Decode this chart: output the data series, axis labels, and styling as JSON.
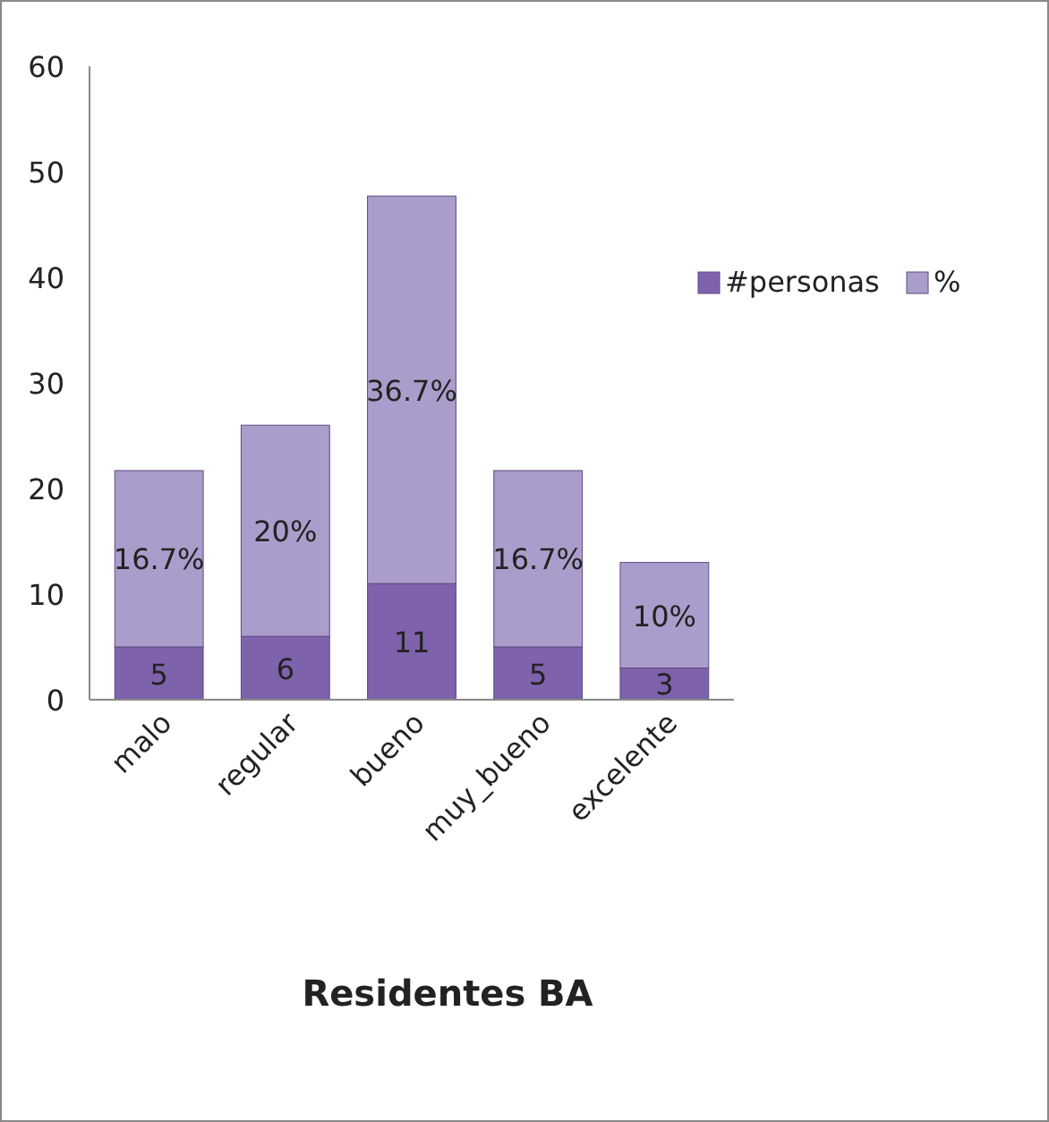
{
  "chart_data": {
    "type": "bar",
    "stacked": true,
    "xlabel": "Residentes BA",
    "categories": [
      "malo",
      "regular",
      "bueno",
      "muy_bueno",
      "excelente"
    ],
    "series": [
      {
        "name": "#personas",
        "color": "#7e62ab",
        "values": [
          5,
          6,
          11,
          5,
          3
        ],
        "value_labels": [
          "5",
          "6",
          "11",
          "5",
          "3"
        ]
      },
      {
        "name": "%",
        "color": "#ab9dcb",
        "values": [
          16.7,
          20,
          36.7,
          16.7,
          10
        ],
        "value_labels": [
          "16.7%",
          "20%",
          "36.7%",
          "16.7%",
          "10%"
        ]
      }
    ],
    "ylim": [
      0,
      60
    ],
    "yticks": [
      0,
      10,
      20,
      30,
      40,
      50,
      60
    ],
    "grid": false,
    "legend": "right"
  }
}
